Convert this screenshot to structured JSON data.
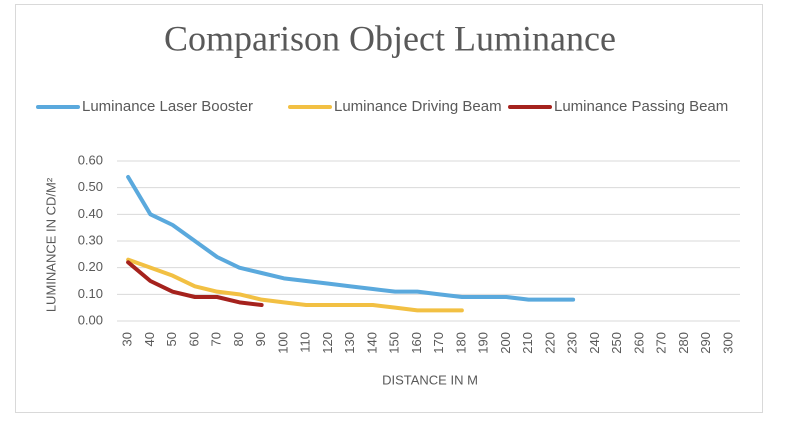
{
  "chart_data": {
    "type": "line",
    "title": "Comparison Object Luminance",
    "xlabel": "DISTANCE IN M",
    "ylabel": "LUMINANCE IN CD/M²",
    "categories": [
      "30",
      "40",
      "50",
      "60",
      "70",
      "80",
      "90",
      "100",
      "110",
      "120",
      "130",
      "140",
      "150",
      "160",
      "170",
      "180",
      "190",
      "200",
      "210",
      "220",
      "230",
      "240",
      "250",
      "260",
      "270",
      "280",
      "290",
      "300"
    ],
    "series": [
      {
        "name": "Luminance Laser Booster",
        "color": "#5aa9dd",
        "values": [
          0.54,
          0.4,
          0.36,
          0.3,
          0.24,
          0.2,
          0.18,
          0.16,
          0.15,
          0.14,
          0.13,
          0.12,
          0.11,
          0.11,
          0.1,
          0.09,
          0.09,
          0.09,
          0.08,
          0.08,
          0.08,
          null,
          null,
          null,
          null,
          null,
          null,
          null
        ]
      },
      {
        "name": "Luminance Driving Beam",
        "color": "#f2c043",
        "values": [
          0.23,
          0.2,
          0.17,
          0.13,
          0.11,
          0.1,
          0.08,
          0.07,
          0.06,
          0.06,
          0.06,
          0.06,
          0.05,
          0.04,
          0.04,
          0.04,
          null,
          null,
          null,
          null,
          null,
          null,
          null,
          null,
          null,
          null,
          null,
          null
        ]
      },
      {
        "name": "Luminance Passing Beam",
        "color": "#a5221d",
        "values": [
          0.22,
          0.15,
          0.11,
          0.09,
          0.09,
          0.07,
          0.06,
          null,
          null,
          null,
          null,
          null,
          null,
          null,
          null,
          null,
          null,
          null,
          null,
          null,
          null,
          null,
          null,
          null,
          null,
          null,
          null,
          null
        ]
      }
    ],
    "ylim": [
      0,
      0.6
    ],
    "yticks": [
      {
        "value": 0,
        "label": "0.00"
      },
      {
        "value": 0.1,
        "label": "0.10"
      },
      {
        "value": 0.2,
        "label": "0.20"
      },
      {
        "value": 0.3,
        "label": "0.30"
      },
      {
        "value": 0.4,
        "label": "0.40"
      },
      {
        "value": 0.5,
        "label": "0.50"
      },
      {
        "value": 0.6,
        "label": "0.60"
      }
    ],
    "grid": true,
    "legend": "top"
  }
}
